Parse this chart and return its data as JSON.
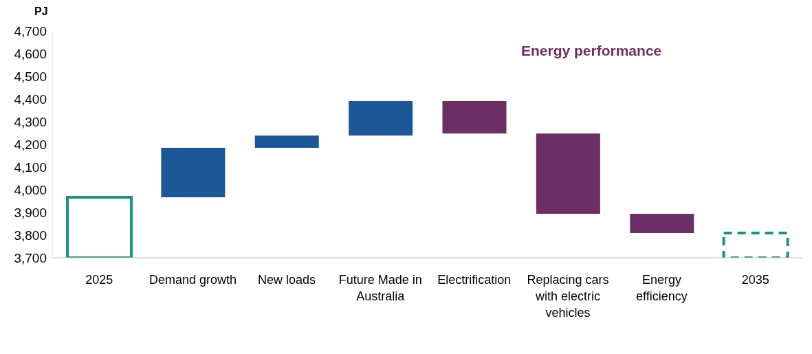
{
  "chart_data": {
    "type": "bar",
    "ylabel": "PJ",
    "annotations": [
      "Energy performance"
    ],
    "categories": [
      "2025",
      "Demand growth",
      "New loads",
      "Future Made in Australia",
      "Electrification",
      "Replacing cars with electric vehicles",
      "Energy efficiency",
      "2035"
    ],
    "series": [
      {
        "color": "#1a9480",
        "line_style": "solid",
        "values": [
          3967,
          null,
          null,
          null,
          null,
          null,
          null,
          null
        ]
      },
      {
        "color": "#1b5796",
        "base": [
          null,
          3967,
          4185,
          4239,
          null,
          null,
          null,
          null
        ],
        "values": [
          null,
          218,
          54,
          152,
          null,
          null,
          null,
          null
        ]
      },
      {
        "color": "#6b2f66",
        "base": [
          null,
          null,
          null,
          null,
          4391,
          4248,
          3894,
          null
        ],
        "values": [
          null,
          null,
          null,
          null,
          -143,
          -354,
          -85,
          null
        ]
      },
      {
        "color": "#1a9480",
        "line_style": "dashed",
        "values": [
          null,
          null,
          null,
          null,
          null,
          null,
          null,
          3809
        ]
      }
    ],
    "ylim": [
      3700,
      4700
    ],
    "yticks": [
      {
        "value": 3700,
        "label": "3,700"
      },
      {
        "value": 3800,
        "label": "3,800"
      },
      {
        "value": 3900,
        "label": "3,900"
      },
      {
        "value": 4000,
        "label": "4,000"
      },
      {
        "value": 4100,
        "label": "4,100"
      },
      {
        "value": 4200,
        "label": "4,200"
      },
      {
        "value": 4300,
        "label": "4,300"
      },
      {
        "value": 4400,
        "label": "4,400"
      },
      {
        "value": 4500,
        "label": "4,500"
      },
      {
        "value": 4600,
        "label": "4,600"
      },
      {
        "value": 4700,
        "label": "4,700"
      }
    ],
    "grid": false,
    "legend": false
  }
}
